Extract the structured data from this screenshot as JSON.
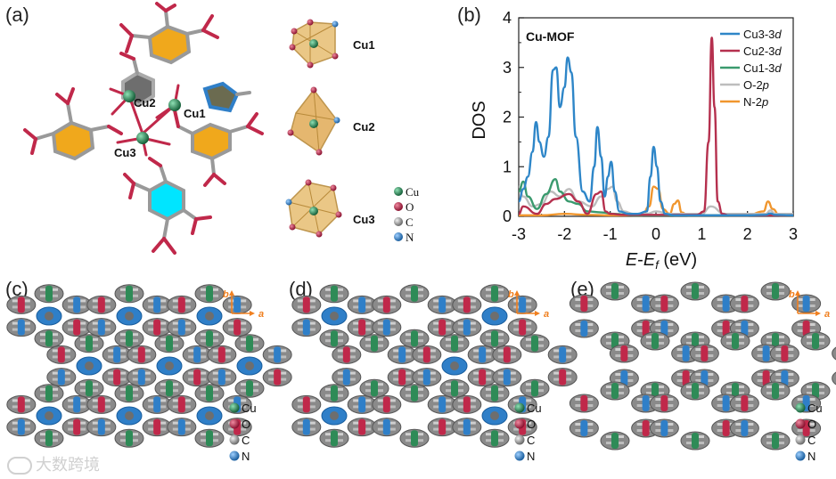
{
  "panels": {
    "a": "(a)",
    "b": "(b)",
    "c": "(c)",
    "d": "(d)",
    "e": "(e)"
  },
  "structure": {
    "site_labels": [
      "Cu2",
      "Cu1",
      "Cu3"
    ],
    "polyhedra_labels": [
      "Cu1",
      "Cu2",
      "Cu3"
    ]
  },
  "element_legend": [
    "Cu",
    "O",
    "C",
    "N"
  ],
  "element_colors": {
    "Cu": "#2e8b57",
    "O": "#c0284a",
    "C": "#9a9a9a",
    "N": "#2f7fc8"
  },
  "axes_labels": {
    "b": "b",
    "a": "a"
  },
  "watermark": "大数跨境",
  "chart_data": {
    "type": "line",
    "title": "Cu-MOF",
    "xlabel": "E-E_f (eV)",
    "ylabel": "DOS",
    "xlim": [
      -3,
      3
    ],
    "ylim": [
      0,
      4
    ],
    "xticks": [
      "-3",
      "-2",
      "-1",
      "0",
      "1",
      "2",
      "3"
    ],
    "yticks": [
      "0",
      "1",
      "2",
      "3",
      "4"
    ],
    "legend_position": "top-right",
    "grid": false,
    "series": [
      {
        "name": "Cu3-3d",
        "color": "#2e86c8",
        "x": [
          -3.0,
          -2.9,
          -2.8,
          -2.7,
          -2.62,
          -2.55,
          -2.45,
          -2.35,
          -2.25,
          -2.18,
          -2.1,
          -2.0,
          -1.93,
          -1.85,
          -1.75,
          -1.6,
          -1.45,
          -1.35,
          -1.28,
          -1.2,
          -1.12,
          -1.05,
          -0.98,
          -0.9,
          -0.8,
          -0.6,
          -0.4,
          -0.2,
          -0.12,
          -0.05,
          0.02,
          0.1,
          0.2,
          0.4,
          0.6,
          0.8,
          1.0,
          1.5,
          2.0,
          2.4,
          2.5,
          2.6,
          3.0
        ],
        "values": [
          0.3,
          0.55,
          0.8,
          1.3,
          1.9,
          1.5,
          1.2,
          1.6,
          2.95,
          3.0,
          2.2,
          2.6,
          3.2,
          2.9,
          1.6,
          0.5,
          0.3,
          1.0,
          1.8,
          1.2,
          0.4,
          0.8,
          1.1,
          0.5,
          0.1,
          0.05,
          0.05,
          0.1,
          0.8,
          1.4,
          1.0,
          0.3,
          0.05,
          0.02,
          0.02,
          0.02,
          0.02,
          0.02,
          0.02,
          0.03,
          0.06,
          0.03,
          0.02
        ]
      },
      {
        "name": "Cu2-3d",
        "color": "#b5304e",
        "x": [
          -3.0,
          -2.9,
          -2.6,
          -2.4,
          -2.2,
          -1.9,
          -1.7,
          -1.5,
          -1.3,
          -1.2,
          -1.1,
          -1.0,
          -0.7,
          -0.3,
          0.0,
          0.3,
          0.6,
          0.9,
          1.05,
          1.15,
          1.22,
          1.28,
          1.35,
          1.45,
          1.6,
          2.0,
          2.5,
          3.0
        ],
        "values": [
          0.05,
          0.2,
          0.05,
          0.25,
          0.35,
          0.45,
          0.3,
          0.05,
          0.45,
          0.5,
          0.1,
          0.05,
          0.03,
          0.03,
          0.03,
          0.03,
          0.03,
          0.03,
          0.1,
          1.5,
          3.6,
          2.2,
          0.3,
          0.05,
          0.02,
          0.02,
          0.02,
          0.02
        ]
      },
      {
        "name": "Cu1-3d",
        "color": "#3a9a6e",
        "x": [
          -3.0,
          -2.9,
          -2.8,
          -2.6,
          -2.4,
          -2.2,
          -2.1,
          -1.9,
          -1.7,
          -1.5,
          -1.2,
          -0.9,
          -0.5,
          0.0,
          0.5,
          1.0,
          2.0,
          3.0
        ],
        "values": [
          0.5,
          0.7,
          0.4,
          0.15,
          0.45,
          0.75,
          0.5,
          0.3,
          0.25,
          0.1,
          0.08,
          0.05,
          0.02,
          0.02,
          0.02,
          0.02,
          0.02,
          0.02
        ]
      },
      {
        "name": "O-2p",
        "color": "#bdbdbd",
        "x": [
          -3.0,
          -2.9,
          -2.7,
          -2.5,
          -2.3,
          -2.1,
          -1.9,
          -1.7,
          -1.4,
          -1.2,
          -1.05,
          -0.95,
          -0.85,
          -0.7,
          -0.5,
          -0.2,
          0.0,
          0.3,
          0.5,
          0.8,
          1.0,
          1.2,
          1.5,
          2.0,
          2.4,
          2.5,
          2.6,
          3.0
        ],
        "values": [
          0.6,
          0.4,
          0.2,
          0.25,
          0.5,
          0.4,
          0.55,
          0.3,
          0.2,
          0.4,
          0.55,
          0.6,
          0.3,
          0.1,
          0.05,
          0.05,
          0.1,
          0.05,
          0.05,
          0.05,
          0.05,
          0.2,
          0.05,
          0.05,
          0.05,
          0.12,
          0.05,
          0.05
        ]
      },
      {
        "name": "N-2p",
        "color": "#f0962e",
        "x": [
          -3.0,
          -2.5,
          -2.0,
          -1.5,
          -1.0,
          -0.6,
          -0.3,
          -0.15,
          -0.05,
          0.05,
          0.15,
          0.3,
          0.4,
          0.48,
          0.56,
          0.7,
          1.0,
          1.5,
          2.0,
          2.35,
          2.45,
          2.55,
          2.7,
          3.0
        ],
        "values": [
          0.02,
          0.02,
          0.05,
          0.03,
          0.02,
          0.02,
          0.02,
          0.2,
          0.6,
          0.55,
          0.15,
          0.05,
          0.25,
          0.32,
          0.08,
          0.02,
          0.02,
          0.02,
          0.02,
          0.1,
          0.3,
          0.15,
          0.02,
          0.02
        ]
      }
    ]
  }
}
